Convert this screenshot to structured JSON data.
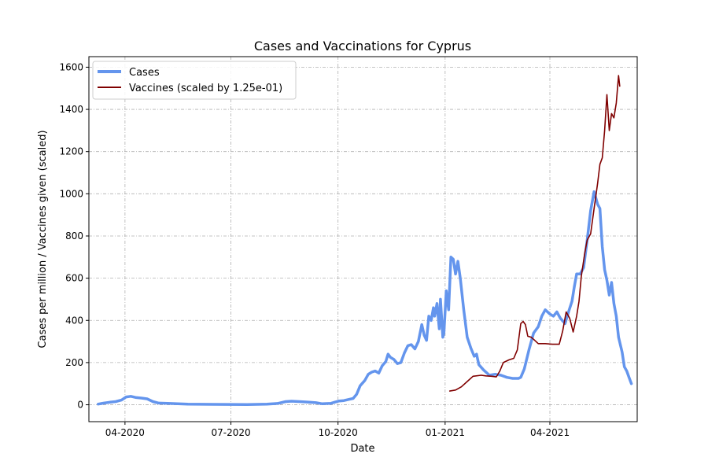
{
  "chart_data": {
    "type": "line",
    "title": "Cases and Vaccinations for Cyprus",
    "xlabel": "Date",
    "ylabel": "Cases per million / Vaccines given (scaled)",
    "xlim": [
      "2020-03-01",
      "2021-06-15"
    ],
    "ylim": [
      -80,
      1650
    ],
    "x_ticks": [
      {
        "date": "2020-04-01",
        "label": "04-2020"
      },
      {
        "date": "2020-07-01",
        "label": "07-2020"
      },
      {
        "date": "2020-10-01",
        "label": "10-2020"
      },
      {
        "date": "2021-01-01",
        "label": "01-2021"
      },
      {
        "date": "2021-04-01",
        "label": "04-2021"
      }
    ],
    "y_ticks": [
      0,
      200,
      400,
      600,
      800,
      1000,
      1200,
      1400,
      1600
    ],
    "grid": true,
    "legend_position": "top-left",
    "series": [
      {
        "name": "Cases",
        "color": "#6495ED",
        "points": [
          [
            "2020-03-09",
            3
          ],
          [
            "2020-03-14",
            8
          ],
          [
            "2020-03-19",
            12
          ],
          [
            "2020-03-24",
            15
          ],
          [
            "2020-03-29",
            22
          ],
          [
            "2020-04-02",
            37
          ],
          [
            "2020-04-06",
            40
          ],
          [
            "2020-04-10",
            35
          ],
          [
            "2020-04-15",
            32
          ],
          [
            "2020-04-20",
            28
          ],
          [
            "2020-04-25",
            15
          ],
          [
            "2020-04-30",
            8
          ],
          [
            "2020-05-10",
            6
          ],
          [
            "2020-05-25",
            3
          ],
          [
            "2020-06-15",
            2
          ],
          [
            "2020-07-15",
            1
          ],
          [
            "2020-08-01",
            3
          ],
          [
            "2020-08-10",
            6
          ],
          [
            "2020-08-17",
            15
          ],
          [
            "2020-08-22",
            17
          ],
          [
            "2020-08-29",
            15
          ],
          [
            "2020-09-05",
            13
          ],
          [
            "2020-09-12",
            10
          ],
          [
            "2020-09-17",
            5
          ],
          [
            "2020-09-25",
            7
          ],
          [
            "2020-09-28",
            12
          ],
          [
            "2020-10-02",
            18
          ],
          [
            "2020-10-06",
            20
          ],
          [
            "2020-10-10",
            25
          ],
          [
            "2020-10-14",
            30
          ],
          [
            "2020-10-17",
            50
          ],
          [
            "2020-10-20",
            90
          ],
          [
            "2020-10-24",
            115
          ],
          [
            "2020-10-27",
            145
          ],
          [
            "2020-10-30",
            155
          ],
          [
            "2020-11-02",
            160
          ],
          [
            "2020-11-05",
            150
          ],
          [
            "2020-11-08",
            185
          ],
          [
            "2020-11-11",
            205
          ],
          [
            "2020-11-13",
            240
          ],
          [
            "2020-11-15",
            225
          ],
          [
            "2020-11-18",
            215
          ],
          [
            "2020-11-21",
            195
          ],
          [
            "2020-11-24",
            200
          ],
          [
            "2020-11-27",
            245
          ],
          [
            "2020-11-30",
            280
          ],
          [
            "2020-12-03",
            285
          ],
          [
            "2020-12-06",
            265
          ],
          [
            "2020-12-09",
            300
          ],
          [
            "2020-12-12",
            380
          ],
          [
            "2020-12-14",
            330
          ],
          [
            "2020-12-16",
            305
          ],
          [
            "2020-12-18",
            420
          ],
          [
            "2020-12-20",
            400
          ],
          [
            "2020-12-22",
            460
          ],
          [
            "2020-12-23",
            420
          ],
          [
            "2020-12-25",
            480
          ],
          [
            "2020-12-27",
            360
          ],
          [
            "2020-12-28",
            500
          ],
          [
            "2020-12-30",
            320
          ],
          [
            "2020-12-31",
            340
          ],
          [
            "2021-01-02",
            540
          ],
          [
            "2021-01-04",
            450
          ],
          [
            "2021-01-06",
            700
          ],
          [
            "2021-01-08",
            690
          ],
          [
            "2021-01-10",
            620
          ],
          [
            "2021-01-12",
            680
          ],
          [
            "2021-01-14",
            600
          ],
          [
            "2021-01-17",
            450
          ],
          [
            "2021-01-20",
            320
          ],
          [
            "2021-01-23",
            270
          ],
          [
            "2021-01-26",
            230
          ],
          [
            "2021-01-28",
            240
          ],
          [
            "2021-01-30",
            190
          ],
          [
            "2021-02-03",
            165
          ],
          [
            "2021-02-08",
            140
          ],
          [
            "2021-02-13",
            145
          ],
          [
            "2021-02-18",
            140
          ],
          [
            "2021-02-23",
            130
          ],
          [
            "2021-02-28",
            125
          ],
          [
            "2021-03-05",
            125
          ],
          [
            "2021-03-07",
            130
          ],
          [
            "2021-03-10",
            170
          ],
          [
            "2021-03-14",
            260
          ],
          [
            "2021-03-18",
            340
          ],
          [
            "2021-03-22",
            370
          ],
          [
            "2021-03-25",
            420
          ],
          [
            "2021-03-28",
            450
          ],
          [
            "2021-04-01",
            430
          ],
          [
            "2021-04-04",
            420
          ],
          [
            "2021-04-07",
            440
          ],
          [
            "2021-04-10",
            410
          ],
          [
            "2021-04-14",
            385
          ],
          [
            "2021-04-17",
            440
          ],
          [
            "2021-04-20",
            490
          ],
          [
            "2021-04-22",
            560
          ],
          [
            "2021-04-24",
            620
          ],
          [
            "2021-04-27",
            620
          ],
          [
            "2021-04-30",
            650
          ],
          [
            "2021-05-03",
            780
          ],
          [
            "2021-05-06",
            920
          ],
          [
            "2021-05-09",
            1010
          ],
          [
            "2021-05-12",
            950
          ],
          [
            "2021-05-14",
            930
          ],
          [
            "2021-05-16",
            750
          ],
          [
            "2021-05-18",
            640
          ],
          [
            "2021-05-20",
            590
          ],
          [
            "2021-05-22",
            520
          ],
          [
            "2021-05-24",
            580
          ],
          [
            "2021-05-26",
            480
          ],
          [
            "2021-05-28",
            420
          ],
          [
            "2021-05-30",
            320
          ],
          [
            "2021-06-02",
            250
          ],
          [
            "2021-06-04",
            180
          ],
          [
            "2021-06-06",
            160
          ],
          [
            "2021-06-08",
            130
          ],
          [
            "2021-06-10",
            100
          ]
        ]
      },
      {
        "name": "Vaccines (scaled by 1.25e-01)",
        "color": "#800000",
        "points": [
          [
            "2021-01-05",
            65
          ],
          [
            "2021-01-10",
            70
          ],
          [
            "2021-01-15",
            85
          ],
          [
            "2021-01-20",
            110
          ],
          [
            "2021-01-25",
            135
          ],
          [
            "2021-02-01",
            140
          ],
          [
            "2021-02-05",
            137
          ],
          [
            "2021-02-10",
            135
          ],
          [
            "2021-02-14",
            132
          ],
          [
            "2021-02-17",
            160
          ],
          [
            "2021-02-20",
            200
          ],
          [
            "2021-02-25",
            213
          ],
          [
            "2021-03-01",
            220
          ],
          [
            "2021-03-04",
            260
          ],
          [
            "2021-03-07",
            385
          ],
          [
            "2021-03-09",
            395
          ],
          [
            "2021-03-11",
            380
          ],
          [
            "2021-03-13",
            325
          ],
          [
            "2021-03-16",
            320
          ],
          [
            "2021-03-19",
            305
          ],
          [
            "2021-03-22",
            290
          ],
          [
            "2021-03-28",
            290
          ],
          [
            "2021-04-03",
            287
          ],
          [
            "2021-04-09",
            287
          ],
          [
            "2021-04-12",
            350
          ],
          [
            "2021-04-15",
            440
          ],
          [
            "2021-04-18",
            410
          ],
          [
            "2021-04-21",
            345
          ],
          [
            "2021-04-24",
            420
          ],
          [
            "2021-04-26",
            490
          ],
          [
            "2021-04-28",
            610
          ],
          [
            "2021-05-01",
            720
          ],
          [
            "2021-05-03",
            780
          ],
          [
            "2021-05-06",
            810
          ],
          [
            "2021-05-09",
            930
          ],
          [
            "2021-05-12",
            1050
          ],
          [
            "2021-05-14",
            1140
          ],
          [
            "2021-05-16",
            1170
          ],
          [
            "2021-05-18",
            1300
          ],
          [
            "2021-05-20",
            1470
          ],
          [
            "2021-05-22",
            1300
          ],
          [
            "2021-05-24",
            1380
          ],
          [
            "2021-05-26",
            1360
          ],
          [
            "2021-05-28",
            1430
          ],
          [
            "2021-05-30",
            1560
          ],
          [
            "2021-05-31",
            1510
          ]
        ]
      }
    ]
  }
}
